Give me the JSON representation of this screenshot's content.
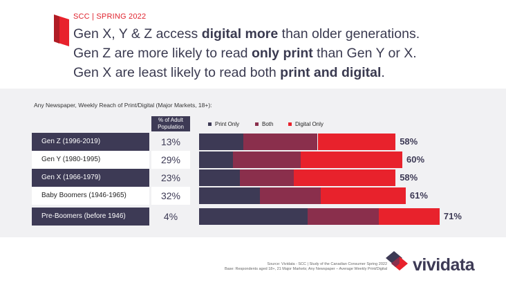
{
  "header": {
    "kicker": "SCC | SPRING 2022",
    "lines": [
      [
        "Gen X, Y & Z access ",
        "digital more",
        " than older generations."
      ],
      [
        "Gen Z are more likely to read ",
        "only print",
        " than Gen Y or X."
      ],
      [
        "Gen X are least likely to read both ",
        "print and digital",
        "."
      ]
    ]
  },
  "chart_data": {
    "type": "bar",
    "orientation": "horizontal",
    "stacked": true,
    "title": "Any Newspaper, Weekly Reach of Print/Digital (Major Markets, 18+):",
    "pct_column_header": "% of Adult Population",
    "categories": [
      "Gen Z (1996-2019)",
      "Gen Y (1980-1995)",
      "Gen X (1966-1979)",
      "Baby Boomers (1946-1965)",
      "Pre-Boomers (before 1946)"
    ],
    "population_pct": [
      "13%",
      "29%",
      "23%",
      "32%",
      "4%"
    ],
    "series": [
      {
        "name": "Print Only",
        "color": "#3d3a55",
        "values": [
          13,
          10,
          12,
          18,
          32
        ]
      },
      {
        "name": "Both",
        "color": "#8a2f4c",
        "values": [
          22,
          20,
          16,
          18,
          21
        ]
      },
      {
        "name": "Digital Only",
        "color": "#e8222c",
        "values": [
          23,
          30,
          30,
          25,
          18
        ]
      }
    ],
    "totals": [
      "58%",
      "60%",
      "58%",
      "61%",
      "71%"
    ],
    "legend_position": "top",
    "grid": false
  },
  "footer": {
    "source_line": "Source: Vividata - SCC | Study of the Canadian Consumer Spring 2022",
    "base_line": "Base: Respondents aged 18+, 21 Major Markets; Any Newspaper – Average Weekly Print/Digital",
    "brand": "vividata"
  }
}
